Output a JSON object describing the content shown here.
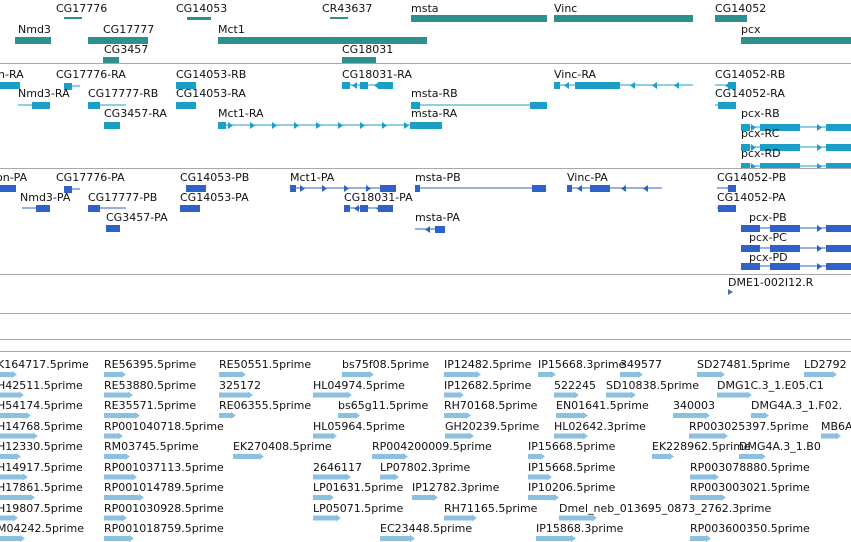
{
  "colors": {
    "gene": "#2e8f8f",
    "transcript_ra": "#1c9fc7",
    "transcript_pa": "#2f62c8",
    "est": "#8cc0e0",
    "divider": "#a8a8a8",
    "reagent": "#4a6fb0"
  },
  "tracks": {
    "genes": {
      "features": [
        {
          "label": "CG17776",
          "glyph": "line"
        },
        {
          "label": "CG14053",
          "glyph": "line"
        },
        {
          "label": "CR43637",
          "glyph": "line"
        },
        {
          "label": "msta",
          "glyph": "bar"
        },
        {
          "label": "Vinc",
          "glyph": "bar"
        },
        {
          "label": "CG14052",
          "glyph": "bar"
        },
        {
          "label": "Nmd3",
          "glyph": "bar"
        },
        {
          "label": "CG17777",
          "glyph": "bar"
        },
        {
          "label": "Mct1",
          "glyph": "bar"
        },
        {
          "label": "pcx",
          "glyph": "bar"
        },
        {
          "label": "CG3457",
          "glyph": "bar"
        },
        {
          "label": "CG18031",
          "glyph": "bar"
        }
      ]
    },
    "transcripts_ra": {
      "features": [
        {
          "label": "n-RA"
        },
        {
          "label": "CG17776-RA"
        },
        {
          "label": "CG14053-RB"
        },
        {
          "label": "CG18031-RA"
        },
        {
          "label": "Vinc-RA"
        },
        {
          "label": "CG14052-RB"
        },
        {
          "label": "Nmd3-RA"
        },
        {
          "label": "CG17777-RB"
        },
        {
          "label": "CG14053-RA"
        },
        {
          "label": "msta-RB"
        },
        {
          "label": "CG14052-RA"
        },
        {
          "label": "CG3457-RA"
        },
        {
          "label": "Mct1-RA"
        },
        {
          "label": "msta-RA"
        },
        {
          "label": "pcx-RB"
        },
        {
          "label": "pcx-RC"
        },
        {
          "label": "pcx-RD"
        }
      ]
    },
    "transcripts_pa": {
      "features": [
        {
          "label": "on-PA"
        },
        {
          "label": "CG17776-PA"
        },
        {
          "label": "CG14053-PB"
        },
        {
          "label": "Mct1-PA"
        },
        {
          "label": "msta-PB"
        },
        {
          "label": "Vinc-PA"
        },
        {
          "label": "CG14052-PB"
        },
        {
          "label": "Nmd3-PA"
        },
        {
          "label": "CG17777-PB"
        },
        {
          "label": "CG14053-PA"
        },
        {
          "label": "CG18031-PA"
        },
        {
          "label": "CG14052-PA"
        },
        {
          "label": "CG3457-PA"
        },
        {
          "label": "msta-PA"
        },
        {
          "label": "pcx-PB"
        },
        {
          "label": "pcx-PC"
        },
        {
          "label": "pcx-PD"
        }
      ]
    },
    "reagents": {
      "features": [
        {
          "label": "DME1-002I12.R"
        }
      ]
    },
    "ests": {
      "rows": [
        [
          "K164717.5prime",
          "RE56395.5prime",
          "RE50551.5prime",
          "bs75f08.5prime",
          "IP12482.5prime",
          "IP15668.3prime",
          "349577",
          "SD27481.5prime",
          "LD2792"
        ],
        [
          "H42511.5prime",
          "RE53880.5prime",
          "325172",
          "HL04974.5prime",
          "IP12682.5prime",
          "522245",
          "SD10838.5prime",
          "DMG1C.3_1.E05.C1"
        ],
        [
          "H54174.5prime",
          "RE35571.5prime",
          "RE06355.5prime",
          "bs65g11.5prime",
          "RH70168.5prime",
          "EN01641.5prime",
          "340003",
          "DMG4A.3_1.F02."
        ],
        [
          "H14768.5prime",
          "RP001040718.5prime",
          "HL05964.5prime",
          "GH20239.5prime",
          "HL02642.3prime",
          "RP003025397.5prime",
          "MB6A"
        ],
        [
          "H12330.5prime",
          "RM03745.5prime",
          "EK270408.5prime",
          "RP004200009.5prime",
          "IP15668.5prime",
          "EK228962.5prime",
          "DMG4A.3_1.B0"
        ],
        [
          "H14917.5prime",
          "RP001037113.5prime",
          "2646117",
          "LP07802.3prime",
          "IP15668.5prime",
          "RP003078880.5prime"
        ],
        [
          "H17861.5prime",
          "RP001014789.5prime",
          "LP01631.5prime",
          "IP12782.3prime",
          "IP10206.5prime",
          "RP003003021.5prime"
        ],
        [
          "H19807.5prime",
          "RP001030928.5prime",
          "LP05071.5prime",
          "RH71165.5prime",
          "Dmel_neb_013695_0873_2762.3prime"
        ],
        [
          "M04242.5prime",
          "RP001018759.5prime",
          "EC23448.5prime",
          "IP15868.3prime",
          "RP003600350.5prime"
        ]
      ]
    }
  }
}
